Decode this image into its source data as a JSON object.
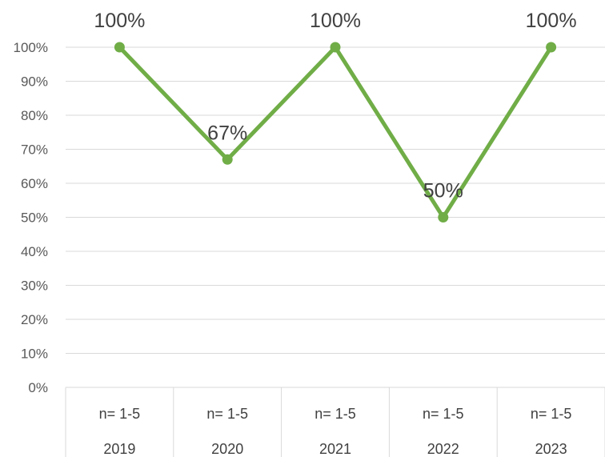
{
  "chart_data": {
    "type": "line",
    "title": "",
    "xlabel": "",
    "ylabel": "",
    "ylim": [
      0,
      100
    ],
    "yticks": [
      0,
      10,
      20,
      30,
      40,
      50,
      60,
      70,
      80,
      90,
      100
    ],
    "ytick_labels": [
      "0%",
      "10%",
      "20%",
      "30%",
      "40%",
      "50%",
      "60%",
      "70%",
      "80%",
      "90%",
      "100%"
    ],
    "grid": true,
    "legend": "none",
    "categories": [
      "2019",
      "2020",
      "2021",
      "2022",
      "2023"
    ],
    "subcategories": [
      "n= 1-5",
      "n= 1-5",
      "n= 1-5",
      "n= 1-5",
      "n= 1-5"
    ],
    "series": [
      {
        "values": [
          100,
          67,
          100,
          50,
          100
        ],
        "data_labels": [
          "100%",
          "67%",
          "100%",
          "50%",
          "100%"
        ],
        "color": "#70ad47"
      }
    ]
  }
}
